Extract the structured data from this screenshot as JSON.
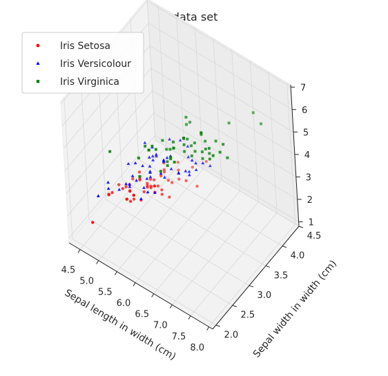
{
  "chart_data": {
    "type": "scatter3d",
    "title": "Iris data set",
    "xlabel": "Sepal length in width (cm)",
    "ylabel": "Sepal width in width (cm)",
    "zlabel": "",
    "xticks": [
      "4.5",
      "5.0",
      "5.5",
      "6.0",
      "6.5",
      "7.0",
      "7.5",
      "8.0"
    ],
    "yticks": [
      "2.0",
      "2.5",
      "3.0",
      "3.5",
      "4.0",
      "4.5"
    ],
    "zticks": [
      "1",
      "2",
      "3",
      "4",
      "5",
      "6",
      "7"
    ],
    "xlim": [
      4.2,
      8.1
    ],
    "ylim": [
      1.9,
      4.5
    ],
    "zlim": [
      0.8,
      7.1
    ],
    "legend_position": "top-left",
    "grid": true,
    "series": [
      {
        "name": "Iris Setosa",
        "color": "#ff0000",
        "marker": "circle",
        "points": [
          [
            5.1,
            3.5,
            1.4
          ],
          [
            4.9,
            3.0,
            1.4
          ],
          [
            4.7,
            3.2,
            1.3
          ],
          [
            4.6,
            3.1,
            1.5
          ],
          [
            5.0,
            3.6,
            1.4
          ],
          [
            5.4,
            3.9,
            1.7
          ],
          [
            4.6,
            3.4,
            1.4
          ],
          [
            5.0,
            3.4,
            1.5
          ],
          [
            4.4,
            2.9,
            1.4
          ],
          [
            4.9,
            3.1,
            1.5
          ],
          [
            5.4,
            3.7,
            1.5
          ],
          [
            4.8,
            3.4,
            1.6
          ],
          [
            4.8,
            3.0,
            1.4
          ],
          [
            4.3,
            3.0,
            1.1
          ],
          [
            5.8,
            4.0,
            1.2
          ],
          [
            5.7,
            4.4,
            1.5
          ],
          [
            5.4,
            3.9,
            1.3
          ],
          [
            5.1,
            3.5,
            1.4
          ],
          [
            5.7,
            3.8,
            1.7
          ],
          [
            5.1,
            3.8,
            1.5
          ],
          [
            5.4,
            3.4,
            1.7
          ],
          [
            5.1,
            3.7,
            1.5
          ],
          [
            4.6,
            3.6,
            1.0
          ],
          [
            5.1,
            3.3,
            1.7
          ],
          [
            4.8,
            3.4,
            1.9
          ],
          [
            5.0,
            3.0,
            1.6
          ],
          [
            5.0,
            3.4,
            1.6
          ],
          [
            5.2,
            3.5,
            1.5
          ],
          [
            5.2,
            3.4,
            1.4
          ],
          [
            4.7,
            3.2,
            1.6
          ],
          [
            4.8,
            3.1,
            1.6
          ],
          [
            5.4,
            3.4,
            1.5
          ],
          [
            5.2,
            4.1,
            1.5
          ],
          [
            5.5,
            4.2,
            1.4
          ],
          [
            4.9,
            3.1,
            1.5
          ],
          [
            5.0,
            3.2,
            1.2
          ],
          [
            5.5,
            3.5,
            1.3
          ],
          [
            4.4,
            3.0,
            1.3
          ],
          [
            5.1,
            3.4,
            1.5
          ],
          [
            5.0,
            3.5,
            1.3
          ],
          [
            4.5,
            2.3,
            1.3
          ],
          [
            4.4,
            3.2,
            1.3
          ],
          [
            5.0,
            3.5,
            1.6
          ],
          [
            5.1,
            3.8,
            1.9
          ],
          [
            4.8,
            3.0,
            1.4
          ],
          [
            5.1,
            3.8,
            1.6
          ],
          [
            4.6,
            3.2,
            1.4
          ],
          [
            5.3,
            3.7,
            1.5
          ],
          [
            5.0,
            3.3,
            1.4
          ]
        ]
      },
      {
        "name": "Iris Versicolour",
        "color": "#0000ff",
        "marker": "triangle",
        "points": [
          [
            7.0,
            3.2,
            4.7
          ],
          [
            6.4,
            3.2,
            4.5
          ],
          [
            6.9,
            3.1,
            4.9
          ],
          [
            5.5,
            2.3,
            4.0
          ],
          [
            6.5,
            2.8,
            4.6
          ],
          [
            5.7,
            2.8,
            4.5
          ],
          [
            6.3,
            3.3,
            4.7
          ],
          [
            4.9,
            2.4,
            3.3
          ],
          [
            6.6,
            2.9,
            4.6
          ],
          [
            5.2,
            2.7,
            3.9
          ],
          [
            5.0,
            2.0,
            3.5
          ],
          [
            5.9,
            3.0,
            4.2
          ],
          [
            6.0,
            2.2,
            4.0
          ],
          [
            6.1,
            2.9,
            4.7
          ],
          [
            5.6,
            2.9,
            3.6
          ],
          [
            6.7,
            3.1,
            4.4
          ],
          [
            5.6,
            3.0,
            4.5
          ],
          [
            5.8,
            2.7,
            4.1
          ],
          [
            6.2,
            2.2,
            4.5
          ],
          [
            5.6,
            2.5,
            3.9
          ],
          [
            5.9,
            3.2,
            4.8
          ],
          [
            6.1,
            2.8,
            4.0
          ],
          [
            6.3,
            2.5,
            4.9
          ],
          [
            6.1,
            2.8,
            4.7
          ],
          [
            6.4,
            2.9,
            4.3
          ],
          [
            6.6,
            3.0,
            4.4
          ],
          [
            6.8,
            2.8,
            4.8
          ],
          [
            6.7,
            3.0,
            5.0
          ],
          [
            6.0,
            2.9,
            4.5
          ],
          [
            5.7,
            2.6,
            3.5
          ],
          [
            5.5,
            2.4,
            3.8
          ],
          [
            5.5,
            2.4,
            3.7
          ],
          [
            5.8,
            2.7,
            3.9
          ],
          [
            6.0,
            2.7,
            5.1
          ],
          [
            5.4,
            3.0,
            4.5
          ],
          [
            6.0,
            3.4,
            4.5
          ],
          [
            6.7,
            3.1,
            4.7
          ],
          [
            6.3,
            2.3,
            4.4
          ],
          [
            5.6,
            3.0,
            4.1
          ],
          [
            5.5,
            2.5,
            4.0
          ],
          [
            5.5,
            2.6,
            4.4
          ],
          [
            6.1,
            3.0,
            4.6
          ],
          [
            5.8,
            2.6,
            4.0
          ],
          [
            5.0,
            2.3,
            3.3
          ],
          [
            5.6,
            2.7,
            4.2
          ],
          [
            5.7,
            3.0,
            4.2
          ],
          [
            5.7,
            2.9,
            4.2
          ],
          [
            6.2,
            2.9,
            4.3
          ],
          [
            5.1,
            2.5,
            3.0
          ],
          [
            5.7,
            2.8,
            4.1
          ]
        ]
      },
      {
        "name": "Iris Virginica",
        "color": "#008000",
        "marker": "square",
        "points": [
          [
            6.3,
            3.3,
            6.0
          ],
          [
            5.8,
            2.7,
            5.1
          ],
          [
            7.1,
            3.0,
            5.9
          ],
          [
            6.3,
            2.9,
            5.6
          ],
          [
            6.5,
            3.0,
            5.8
          ],
          [
            7.6,
            3.0,
            6.6
          ],
          [
            4.9,
            2.5,
            4.5
          ],
          [
            7.3,
            2.9,
            6.3
          ],
          [
            6.7,
            2.5,
            5.8
          ],
          [
            7.2,
            3.6,
            6.1
          ],
          [
            6.5,
            3.2,
            5.1
          ],
          [
            6.4,
            2.7,
            5.3
          ],
          [
            6.8,
            3.0,
            5.5
          ],
          [
            5.7,
            2.5,
            5.0
          ],
          [
            5.8,
            2.8,
            5.1
          ],
          [
            6.4,
            3.2,
            5.3
          ],
          [
            6.5,
            3.0,
            5.5
          ],
          [
            7.7,
            3.8,
            6.7
          ],
          [
            7.7,
            2.6,
            6.9
          ],
          [
            6.0,
            2.2,
            5.0
          ],
          [
            6.9,
            3.2,
            5.7
          ],
          [
            5.6,
            2.8,
            4.9
          ],
          [
            7.7,
            2.8,
            6.7
          ],
          [
            6.3,
            2.7,
            4.9
          ],
          [
            6.7,
            3.3,
            5.7
          ],
          [
            7.2,
            3.2,
            6.0
          ],
          [
            6.2,
            2.8,
            4.8
          ],
          [
            6.1,
            3.0,
            4.9
          ],
          [
            6.4,
            2.8,
            5.6
          ],
          [
            7.2,
            3.0,
            5.8
          ],
          [
            7.4,
            2.8,
            6.1
          ],
          [
            7.9,
            3.8,
            6.4
          ],
          [
            6.4,
            2.8,
            5.6
          ],
          [
            6.3,
            2.8,
            5.1
          ],
          [
            6.1,
            2.6,
            5.6
          ],
          [
            7.7,
            3.0,
            6.1
          ],
          [
            6.3,
            3.4,
            5.6
          ],
          [
            6.4,
            3.1,
            5.5
          ],
          [
            6.0,
            3.0,
            4.8
          ],
          [
            6.9,
            3.1,
            5.4
          ],
          [
            6.7,
            3.1,
            5.6
          ],
          [
            6.9,
            3.1,
            5.1
          ],
          [
            5.8,
            2.7,
            5.1
          ],
          [
            6.8,
            3.2,
            5.9
          ],
          [
            6.7,
            3.3,
            5.7
          ],
          [
            6.7,
            3.0,
            5.2
          ],
          [
            6.3,
            2.5,
            5.0
          ],
          [
            6.5,
            3.0,
            5.2
          ],
          [
            6.2,
            3.4,
            5.4
          ],
          [
            5.9,
            3.0,
            5.1
          ]
        ]
      }
    ]
  }
}
